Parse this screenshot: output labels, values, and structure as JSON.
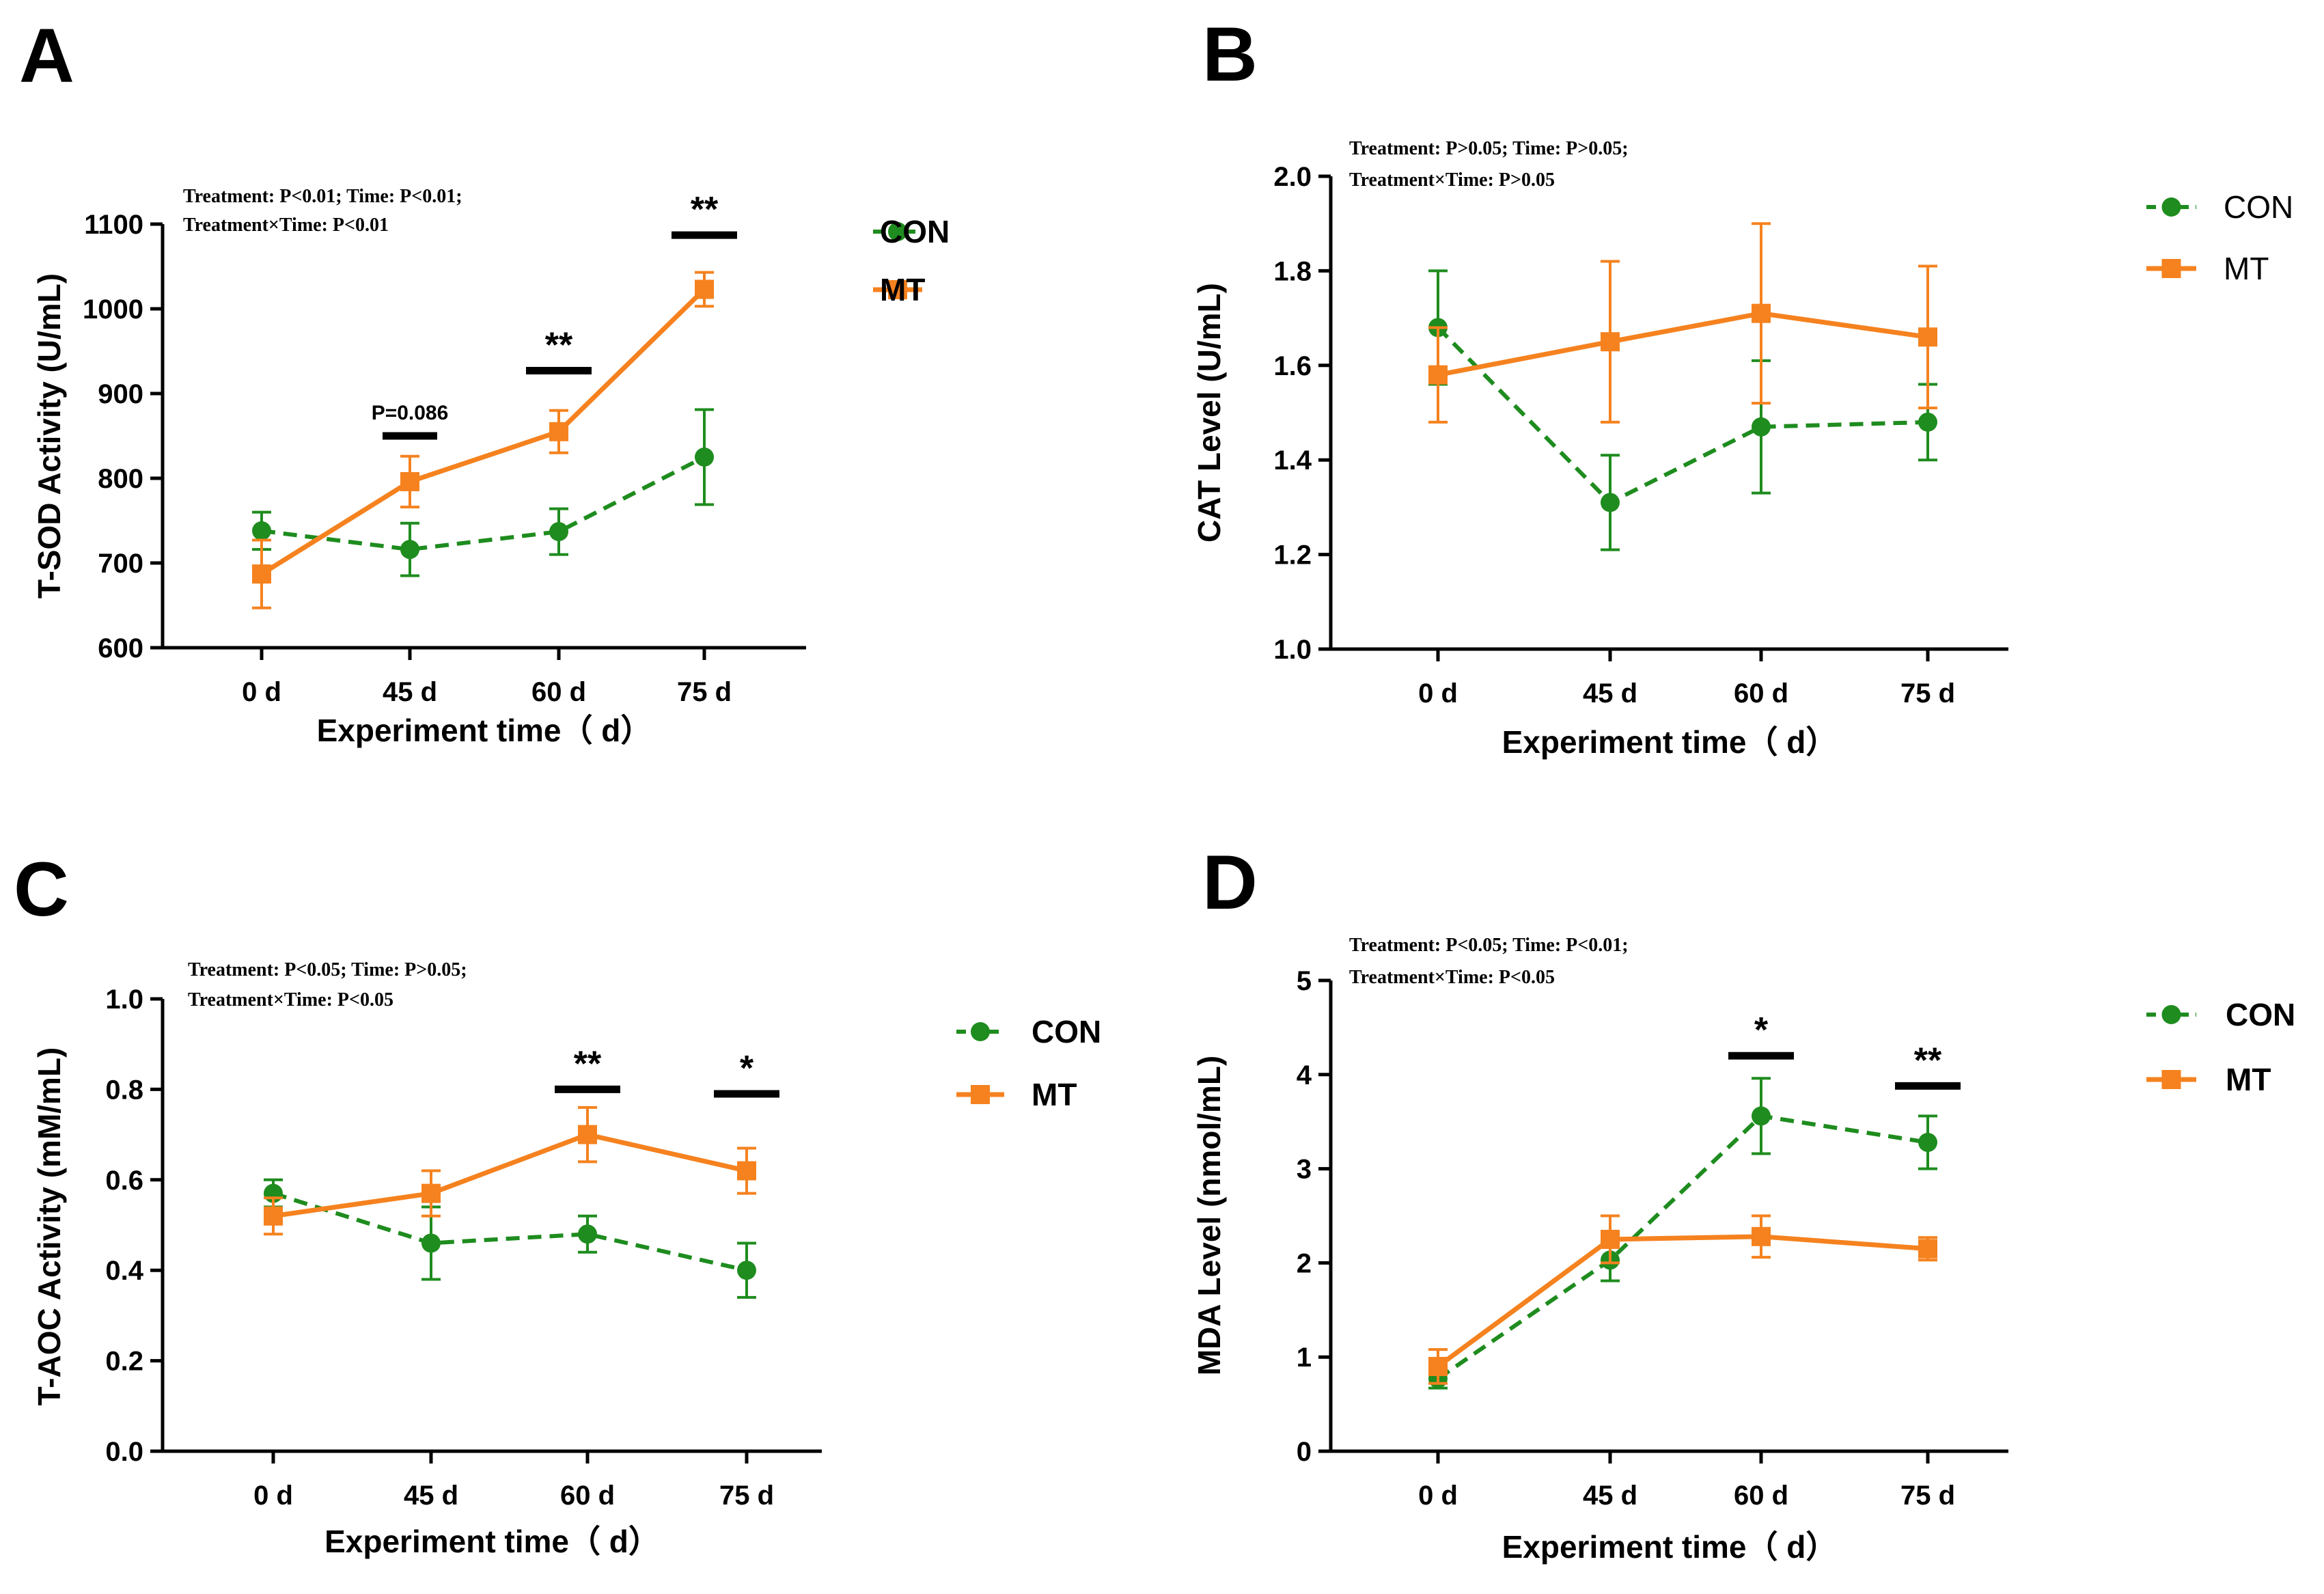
{
  "colors": {
    "con": "#1e8c1e",
    "mt": "#f5821f",
    "axis": "#000000"
  },
  "panels": [
    {
      "letter": "A",
      "ylabel": "T-SOD Activity (U/mL)",
      "xlabel": "Experiment time（ d）",
      "stats": [
        "Treatment: P<0.01; Time: P<0.01;",
        "Treatment×Time: P<0.01"
      ],
      "legend_con": "CON",
      "legend_mt": "MT",
      "legend_style": "bold"
    },
    {
      "letter": "B",
      "ylabel": "CAT Level (U/mL)",
      "xlabel": "Experiment time（ d）",
      "stats": [
        "Treatment: P>0.05; Time: P>0.05;",
        "Treatment×Time: P>0.05"
      ],
      "legend_con": "CON",
      "legend_mt": "MT",
      "legend_style": "light"
    },
    {
      "letter": "C",
      "ylabel": "T-AOC Activity (mM/mL)",
      "xlabel": "Experiment time（ d）",
      "stats": [
        "Treatment: P<0.05; Time: P>0.05;",
        "Treatment×Time: P<0.05"
      ],
      "legend_con": "CON",
      "legend_mt": "MT",
      "legend_style": "bold"
    },
    {
      "letter": "D",
      "ylabel": "MDA Level (nmol/mL)",
      "xlabel": "Experiment time（ d）",
      "stats": [
        "Treatment: P<0.05; Time: P<0.01;",
        "Treatment×Time: P<0.05"
      ],
      "legend_con": "CON",
      "legend_mt": "MT",
      "legend_style": "bold"
    }
  ],
  "chart_data": [
    {
      "type": "line",
      "panel": "A",
      "categories": [
        "0 d",
        "45 d",
        "60 d",
        "75 d"
      ],
      "ylim": [
        600,
        1100
      ],
      "yticks": [
        600,
        700,
        800,
        900,
        1000,
        1100
      ],
      "series": [
        {
          "name": "CON",
          "values": [
            738,
            716,
            737,
            825
          ],
          "errors": [
            22,
            31,
            27,
            56
          ]
        },
        {
          "name": "MT",
          "values": [
            687,
            796,
            855,
            1023
          ],
          "errors": [
            40,
            30,
            25,
            20
          ]
        }
      ],
      "annotations": [
        {
          "category": "45 d",
          "label": "P=0.086",
          "y": 850,
          "small": true
        },
        {
          "category": "60 d",
          "label": "**",
          "y": 927
        },
        {
          "category": "75 d",
          "label": "**",
          "y": 1087
        }
      ]
    },
    {
      "type": "line",
      "panel": "B",
      "categories": [
        "0 d",
        "45 d",
        "60 d",
        "75 d"
      ],
      "ylim": [
        1.0,
        2.0
      ],
      "yticks": [
        1.0,
        1.2,
        1.4,
        1.6,
        1.8,
        2.0
      ],
      "series": [
        {
          "name": "CON",
          "values": [
            1.68,
            1.31,
            1.47,
            1.48
          ],
          "errors": [
            0.12,
            0.1,
            0.14,
            0.08
          ]
        },
        {
          "name": "MT",
          "values": [
            1.58,
            1.65,
            1.71,
            1.66
          ],
          "errors": [
            0.1,
            0.17,
            0.19,
            0.15
          ]
        }
      ],
      "annotations": []
    },
    {
      "type": "line",
      "panel": "C",
      "categories": [
        "0 d",
        "45 d",
        "60 d",
        "75 d"
      ],
      "ylim": [
        0.0,
        1.0
      ],
      "yticks": [
        0.0,
        0.2,
        0.4,
        0.6,
        0.8,
        1.0
      ],
      "series": [
        {
          "name": "CON",
          "values": [
            0.57,
            0.46,
            0.48,
            0.4
          ],
          "errors": [
            0.03,
            0.08,
            0.04,
            0.06
          ]
        },
        {
          "name": "MT",
          "values": [
            0.52,
            0.57,
            0.7,
            0.62
          ],
          "errors": [
            0.04,
            0.05,
            0.06,
            0.05
          ]
        }
      ],
      "annotations": [
        {
          "category": "60 d",
          "label": "**",
          "y": 0.8
        },
        {
          "category": "75 d",
          "label": "*",
          "y": 0.79
        }
      ]
    },
    {
      "type": "line",
      "panel": "D",
      "categories": [
        "0 d",
        "45 d",
        "60 d",
        "75 d"
      ],
      "ylim": [
        0,
        5
      ],
      "yticks": [
        0,
        1,
        2,
        3,
        4,
        5
      ],
      "series": [
        {
          "name": "CON",
          "values": [
            0.77,
            2.03,
            3.56,
            3.28
          ],
          "errors": [
            0.1,
            0.22,
            0.4,
            0.28
          ]
        },
        {
          "name": "MT",
          "values": [
            0.9,
            2.25,
            2.28,
            2.15
          ],
          "errors": [
            0.18,
            0.25,
            0.22,
            0.12
          ]
        }
      ],
      "annotations": [
        {
          "category": "60 d",
          "label": "*",
          "y": 4.2
        },
        {
          "category": "75 d",
          "label": "**",
          "y": 3.88
        }
      ]
    }
  ]
}
